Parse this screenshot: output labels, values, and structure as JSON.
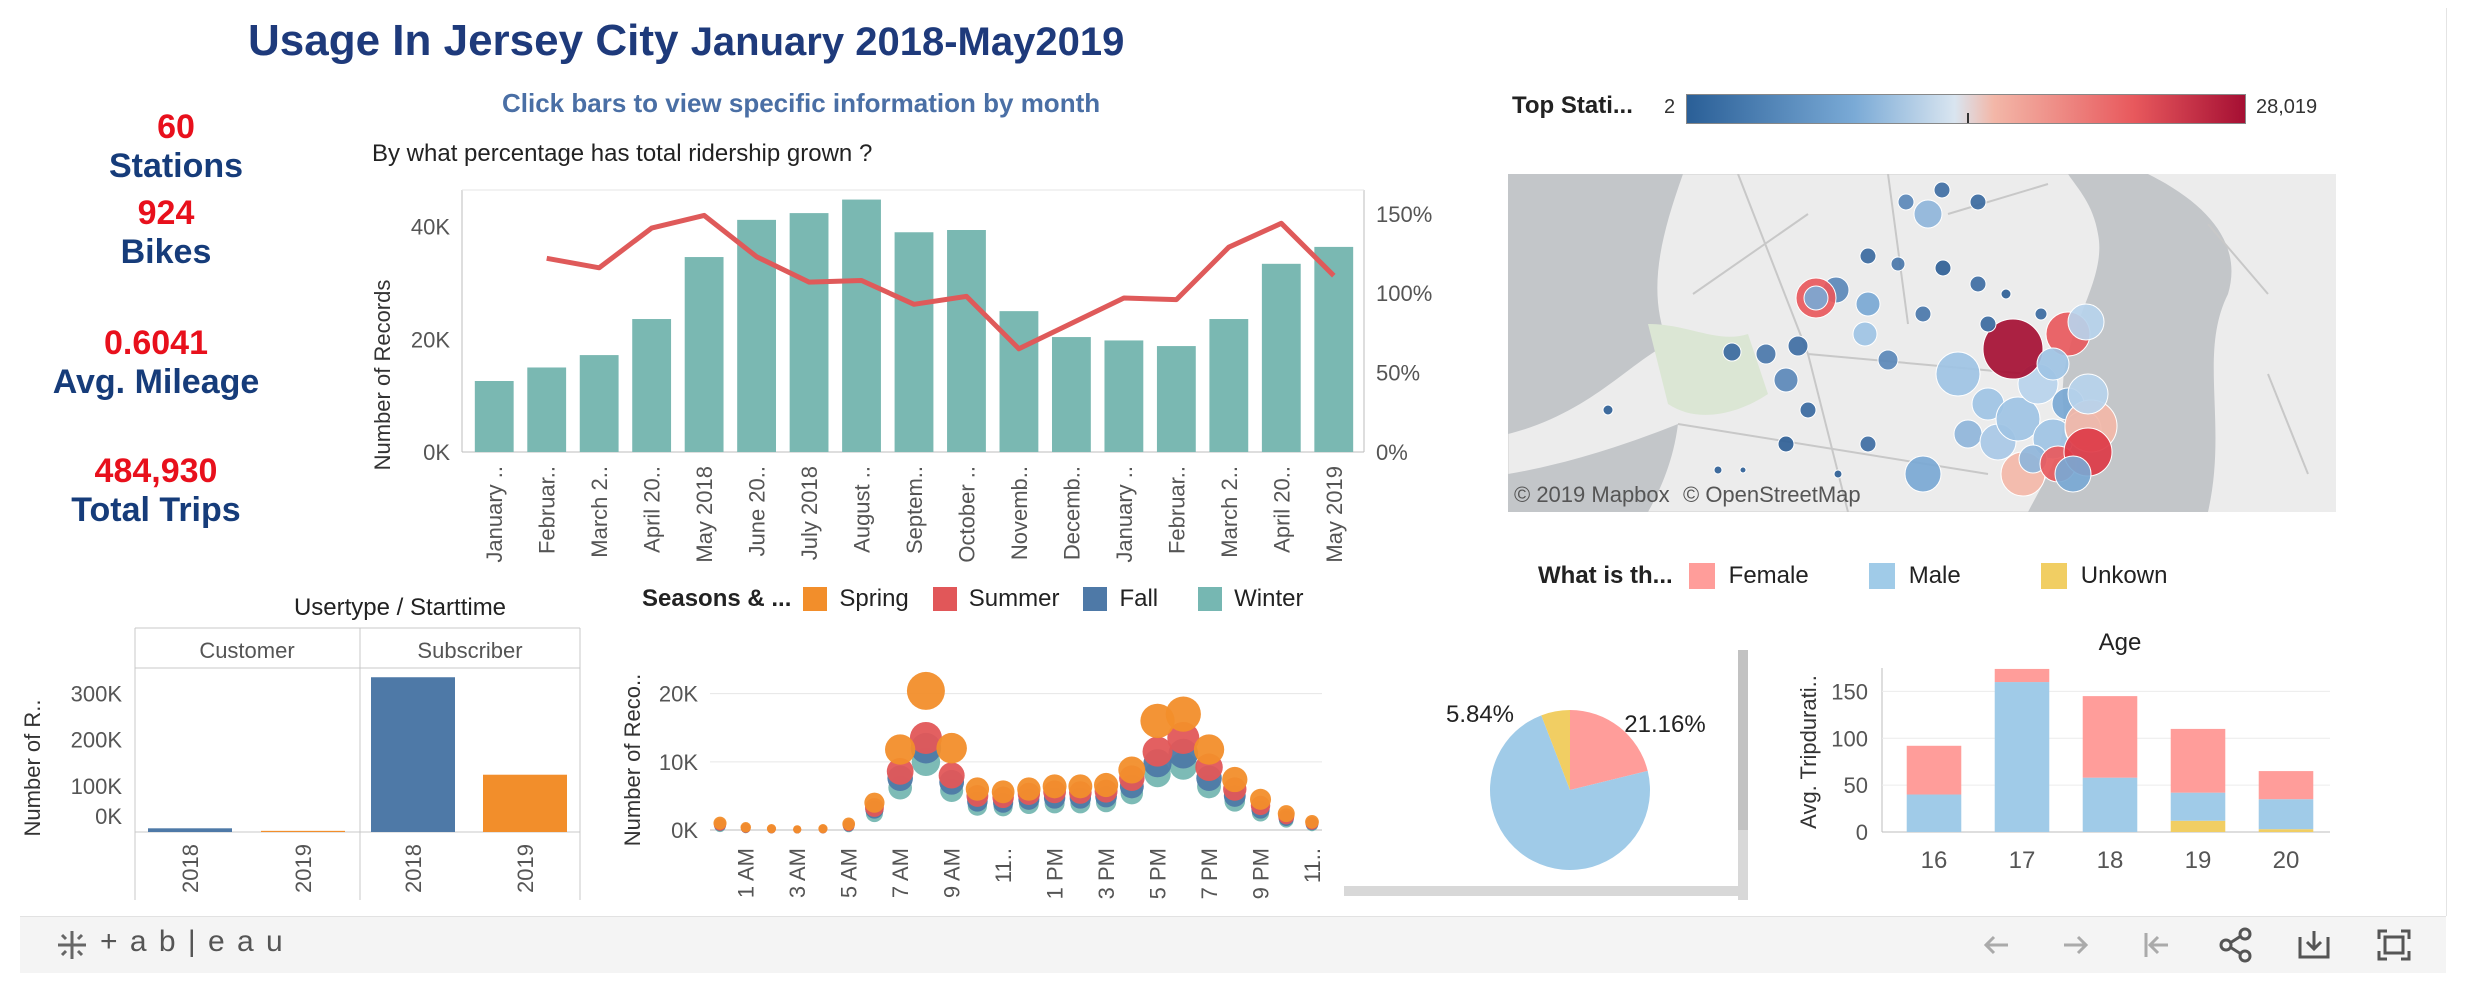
{
  "dashboard": {
    "title_main": "Usage In Jersey City",
    "title_period": "January 2018-May2019",
    "subtitle": "Click bars to view specific information by month",
    "question": "By what percentage has total ridership grown ?"
  },
  "kpis": [
    {
      "value": "60",
      "label": "Stations"
    },
    {
      "value": "924",
      "label": "Bikes"
    },
    {
      "value": "0.6041",
      "label": "Avg. Mileage"
    },
    {
      "value": "484,930",
      "label": "Total Trips"
    }
  ],
  "colors": {
    "teal": "#7ab8b2",
    "red_line": "#df5a5a",
    "spring": "#f28e2b",
    "summer": "#e15759",
    "fall": "#4e79a7",
    "winter": "#76b7b2",
    "female": "#ff9d9a",
    "male": "#a0cbe8",
    "unknown": "#f1ce63",
    "title_blue": "#1e3a7b",
    "kpi_red": "#e8101c"
  },
  "monthly_chart": {
    "type": "bar",
    "ylabel": "Number of Records",
    "y_ticks": [
      "40K",
      "20K",
      "0K"
    ],
    "y2_ticks": [
      "150%",
      "100%",
      "50%",
      "0%"
    ],
    "categories": [
      "January ..",
      "Februar..",
      "March 2..",
      "April 20..",
      "May 2018",
      "June 20..",
      "July 2018",
      "August ..",
      "Septem..",
      "October ..",
      "Novemb..",
      "Decemb..",
      "January ..",
      "Februar..",
      "March 2..",
      "April 20..",
      "May 2019"
    ],
    "values": [
      12600,
      15000,
      17200,
      23600,
      34600,
      41200,
      42400,
      44800,
      39000,
      39400,
      25000,
      20400,
      19800,
      18800,
      23600,
      33400,
      36400
    ],
    "growth_pct": [
      null,
      122,
      116,
      141,
      149,
      123,
      107,
      108,
      93,
      98,
      65,
      81,
      97,
      96,
      129,
      144,
      111
    ],
    "ylim": [
      0,
      46500
    ],
    "y2lim": [
      0,
      165
    ]
  },
  "legend_seasons": {
    "title": "Seasons & ...",
    "items": [
      {
        "label": "Spring"
      },
      {
        "label": "Summer"
      },
      {
        "label": "Fall"
      },
      {
        "label": "Winter"
      }
    ]
  },
  "station_map": {
    "title": "Top Stati...",
    "scale_min": "2",
    "scale_max": "28,019",
    "attribution_mapbox": "© 2019 Mapbox",
    "attribution_osm": "© OpenStreetMap"
  },
  "gender_legend": {
    "title": "What is th...",
    "items": [
      {
        "label": "Female"
      },
      {
        "label": "Male"
      },
      {
        "label": "Unkown"
      }
    ]
  },
  "usertype_chart": {
    "type": "bar",
    "title": "Usertype / Starttime",
    "ylabel": "Number of R..",
    "panels": [
      {
        "label": "Customer",
        "bars": [
          {
            "x": "2018",
            "value": 8000
          },
          {
            "x": "2019",
            "value": 2500
          }
        ]
      },
      {
        "label": "Subscriber",
        "bars": [
          {
            "x": "2018",
            "value": 335000
          },
          {
            "x": "2019",
            "value": 124000
          }
        ]
      }
    ],
    "y_ticks": [
      "300K",
      "200K",
      "100K",
      "0K"
    ],
    "ylim": [
      0,
      355000
    ]
  },
  "hourly_chart": {
    "type": "scatter",
    "ylabel": "Number of Reco..",
    "y_ticks": [
      "20K",
      "10K",
      "0K"
    ],
    "x_labels": [
      "1 AM",
      "3 AM",
      "5 AM",
      "7 AM",
      "9 AM",
      "11..",
      "1 PM",
      "3 PM",
      "5 PM",
      "7 PM",
      "9 PM",
      "11.."
    ],
    "hours": [
      0,
      1,
      2,
      3,
      4,
      5,
      6,
      7,
      8,
      9,
      10,
      11,
      12,
      13,
      14,
      15,
      16,
      17,
      18,
      19,
      20,
      21,
      22,
      23
    ],
    "series": [
      {
        "name": "Spring",
        "values": [
          1000,
          400,
          200,
          100,
          200,
          900,
          4000,
          11800,
          20400,
          12000,
          6000,
          5600,
          6000,
          6400,
          6400,
          6600,
          8800,
          16000,
          17000,
          11800,
          7400,
          4500,
          2400,
          1200
        ]
      },
      {
        "name": "Summer",
        "values": [
          800,
          300,
          150,
          80,
          150,
          700,
          3300,
          8600,
          13500,
          8000,
          5000,
          4800,
          5300,
          5600,
          5500,
          5700,
          7600,
          11500,
          13500,
          9200,
          6000,
          3600,
          2000,
          1000
        ]
      },
      {
        "name": "Fall",
        "values": [
          700,
          250,
          120,
          60,
          120,
          600,
          3000,
          7600,
          12000,
          7000,
          4200,
          4000,
          4500,
          4700,
          4700,
          4900,
          6400,
          9800,
          11200,
          7600,
          5000,
          3000,
          1700,
          900
        ]
      },
      {
        "name": "Winter",
        "values": [
          500,
          200,
          80,
          40,
          90,
          450,
          2400,
          6200,
          10000,
          5800,
          3500,
          3400,
          3800,
          3900,
          3900,
          4100,
          5400,
          8200,
          9400,
          6400,
          4200,
          2500,
          1400,
          700
        ]
      }
    ],
    "ylim": [
      0,
      22000
    ]
  },
  "gender_pie": {
    "type": "pie",
    "slices": [
      {
        "label": "Female",
        "value": 21.16,
        "text": "21.16%"
      },
      {
        "label": "Male",
        "value": 73.0
      },
      {
        "label": "Unkown",
        "value": 5.84,
        "text": "5.84%"
      }
    ]
  },
  "age_chart": {
    "type": "bar",
    "title": "Age",
    "ylabel": "Avg. Tripdurati..",
    "categories": [
      "16",
      "17",
      "18",
      "19",
      "20"
    ],
    "series": [
      {
        "name": "Male",
        "values": [
          40,
          160,
          58,
          30,
          32
        ]
      },
      {
        "name": "Female",
        "values": [
          52,
          14,
          87,
          68,
          30
        ]
      },
      {
        "name": "Unkown",
        "values": [
          0,
          0,
          0,
          12,
          3
        ]
      }
    ],
    "y_ticks": [
      "150",
      "100",
      "50",
      "0"
    ],
    "ylim": [
      0,
      175
    ]
  },
  "footer": {
    "brand": "+ a b | e a u"
  }
}
